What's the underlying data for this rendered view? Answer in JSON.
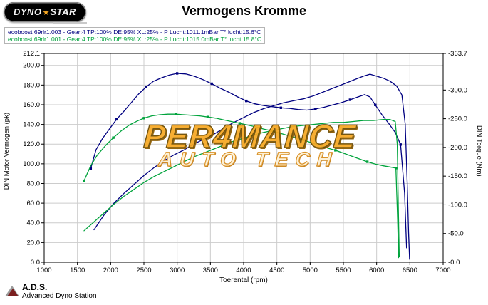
{
  "header": {
    "title": "Vermogens Kromme",
    "logo": {
      "part1": "DYNO",
      "star": "★",
      "part2": "STAR"
    }
  },
  "legend": {
    "run1": "ecoboost 69rlr1.003 - Gear:4 TP:100% DE:95% XL:25%  - P Lucht:1011.1mBar T° lucht:15.6°C",
    "run2": "ecoboost 69rlr1.001 - Gear:4 TP:100% DE:95% XL:25%  - P Lucht:1015.0mBar T° lucht:15.8°C"
  },
  "watermark": {
    "line1": "PER4MANCE",
    "line2": "AUTO TECH"
  },
  "footer": {
    "brand": "A.D.S.",
    "subtitle": "Advanced Dyno Station"
  },
  "colors": {
    "run1": "#000080",
    "run2": "#00a33c",
    "watermark_orange": "#f7a823",
    "logo_bg": "#000000",
    "grid": "#cccccc"
  },
  "chart_data": {
    "type": "line",
    "title": "Vermogens Kromme",
    "xlabel": "Toerental (rpm)",
    "ylabel_left": "DIN Motor Vermogen (pk)",
    "ylabel_right": "DIN Torque (Nm)",
    "x_range": [
      1000,
      7000
    ],
    "y_left_range": [
      0,
      212.1
    ],
    "y_right_range": [
      0,
      363.7
    ],
    "grid": true,
    "legend_position": "top-left",
    "x_ticks": [
      {
        "label": "1000",
        "value": 1000
      },
      {
        "label": "1500",
        "value": 1500
      },
      {
        "label": "2000",
        "value": 2000
      },
      {
        "label": "2500",
        "value": 2500
      },
      {
        "label": "3000",
        "value": 3000
      },
      {
        "label": "3500",
        "value": 3500
      },
      {
        "label": "4000",
        "value": 4000
      },
      {
        "label": "4500",
        "value": 4500
      },
      {
        "label": "5000",
        "value": 5000
      },
      {
        "label": "5500",
        "value": 5500
      },
      {
        "label": "6000",
        "value": 6000
      },
      {
        "label": "6500",
        "value": 6500
      },
      {
        "label": "7000",
        "value": 7000
      }
    ],
    "y_left_ticks": [
      {
        "label": "212.1",
        "value": 212.1
      },
      {
        "label": "200.0",
        "value": 200
      },
      {
        "label": "180.0",
        "value": 180
      },
      {
        "label": "160.0",
        "value": 160
      },
      {
        "label": "140.0",
        "value": 140
      },
      {
        "label": "120.0",
        "value": 120
      },
      {
        "label": "100.0",
        "value": 100
      },
      {
        "label": "80.0",
        "value": 80
      },
      {
        "label": "60.0",
        "value": 60
      },
      {
        "label": "40.0",
        "value": 40
      },
      {
        "label": "20.0",
        "value": 20
      },
      {
        "label": "0.0",
        "value": 0
      }
    ],
    "y_right_ticks": [
      {
        "label": "-363.7",
        "value": 363.7
      },
      {
        "label": "-300.0",
        "value": 300
      },
      {
        "label": "-250.0",
        "value": 250
      },
      {
        "label": "-200.0",
        "value": 200
      },
      {
        "label": "-150.0",
        "value": 150
      },
      {
        "label": "-100.0",
        "value": 100
      },
      {
        "label": "-50.0",
        "value": 50
      },
      {
        "label": "-0.0",
        "value": 0
      }
    ],
    "series": [
      {
        "id": "run1-power",
        "name": "ecoboost 69rlr1.003 vermogen (pk)",
        "axis": "left",
        "color": "#000080",
        "marker": false,
        "points": [
          [
            1750,
            33
          ],
          [
            1900,
            48
          ],
          [
            2050,
            60
          ],
          [
            2200,
            70
          ],
          [
            2350,
            79
          ],
          [
            2500,
            88
          ],
          [
            2650,
            96
          ],
          [
            2800,
            103
          ],
          [
            2950,
            109
          ],
          [
            3100,
            114
          ],
          [
            3250,
            120
          ],
          [
            3400,
            125
          ],
          [
            3550,
            130
          ],
          [
            3700,
            136
          ],
          [
            3850,
            142
          ],
          [
            4000,
            147
          ],
          [
            4150,
            152
          ],
          [
            4300,
            156
          ],
          [
            4450,
            159
          ],
          [
            4600,
            162
          ],
          [
            4750,
            164
          ],
          [
            4900,
            166
          ],
          [
            5050,
            169
          ],
          [
            5200,
            173
          ],
          [
            5350,
            177
          ],
          [
            5500,
            181
          ],
          [
            5650,
            185
          ],
          [
            5800,
            189
          ],
          [
            5900,
            191
          ],
          [
            6000,
            189
          ],
          [
            6100,
            187
          ],
          [
            6200,
            184
          ],
          [
            6300,
            179
          ],
          [
            6380,
            170
          ],
          [
            6430,
            140
          ],
          [
            6460,
            80
          ],
          [
            6480,
            30
          ],
          [
            6495,
            3
          ]
        ]
      },
      {
        "id": "run1-torque",
        "name": "ecoboost 69rlr1.003 torque (Nm)",
        "axis": "right",
        "color": "#000080",
        "marker": true,
        "points": [
          [
            1700,
            163
          ],
          [
            1780,
            196
          ],
          [
            1880,
            216
          ],
          [
            1980,
            232
          ],
          [
            2090,
            249
          ],
          [
            2200,
            263
          ],
          [
            2310,
            278
          ],
          [
            2420,
            293
          ],
          [
            2530,
            305
          ],
          [
            2640,
            315
          ],
          [
            2760,
            321
          ],
          [
            2880,
            326
          ],
          [
            3000,
            329
          ],
          [
            3130,
            328
          ],
          [
            3260,
            324
          ],
          [
            3390,
            318
          ],
          [
            3520,
            311
          ],
          [
            3650,
            303
          ],
          [
            3780,
            296
          ],
          [
            3910,
            288
          ],
          [
            4040,
            281
          ],
          [
            4170,
            276
          ],
          [
            4300,
            273
          ],
          [
            4430,
            271
          ],
          [
            4560,
            269
          ],
          [
            4690,
            268
          ],
          [
            4820,
            266
          ],
          [
            4950,
            265
          ],
          [
            5080,
            267
          ],
          [
            5210,
            270
          ],
          [
            5340,
            274
          ],
          [
            5470,
            278
          ],
          [
            5600,
            283
          ],
          [
            5720,
            288
          ],
          [
            5820,
            292
          ],
          [
            5900,
            288
          ],
          [
            5980,
            274
          ],
          [
            6080,
            257
          ],
          [
            6180,
            242
          ],
          [
            6280,
            226
          ],
          [
            6360,
            205
          ],
          [
            6420,
            120
          ],
          [
            6450,
            25
          ]
        ]
      },
      {
        "id": "run2-power",
        "name": "ecoboost 69rlr1.001 vermogen (pk)",
        "axis": "left",
        "color": "#00a33c",
        "marker": false,
        "points": [
          [
            1600,
            32
          ],
          [
            1750,
            41
          ],
          [
            1900,
            50
          ],
          [
            2050,
            59
          ],
          [
            2200,
            67
          ],
          [
            2350,
            74
          ],
          [
            2500,
            81
          ],
          [
            2650,
            87
          ],
          [
            2800,
            92
          ],
          [
            2950,
            97
          ],
          [
            3100,
            102
          ],
          [
            3250,
            107
          ],
          [
            3400,
            111
          ],
          [
            3550,
            115
          ],
          [
            3700,
            119
          ],
          [
            3850,
            123
          ],
          [
            4000,
            126
          ],
          [
            4150,
            129
          ],
          [
            4300,
            132
          ],
          [
            4450,
            134
          ],
          [
            4600,
            136
          ],
          [
            4750,
            138
          ],
          [
            4900,
            139
          ],
          [
            5050,
            140
          ],
          [
            5200,
            141
          ],
          [
            5350,
            142
          ],
          [
            5500,
            142
          ],
          [
            5650,
            143
          ],
          [
            5800,
            144
          ],
          [
            5950,
            144
          ],
          [
            6100,
            145
          ],
          [
            6200,
            145
          ],
          [
            6280,
            143
          ],
          [
            6310,
            120
          ],
          [
            6325,
            60
          ],
          [
            6340,
            6
          ]
        ]
      },
      {
        "id": "run2-torque",
        "name": "ecoboost 69rlr1.001 torque (Nm)",
        "axis": "right",
        "color": "#00a33c",
        "marker": true,
        "points": [
          [
            1600,
            142
          ],
          [
            1700,
            168
          ],
          [
            1800,
            187
          ],
          [
            1920,
            203
          ],
          [
            2040,
            217
          ],
          [
            2160,
            229
          ],
          [
            2280,
            239
          ],
          [
            2400,
            246
          ],
          [
            2500,
            251
          ],
          [
            2620,
            255
          ],
          [
            2740,
            257
          ],
          [
            2860,
            258
          ],
          [
            2980,
            258
          ],
          [
            3100,
            257
          ],
          [
            3220,
            256
          ],
          [
            3340,
            255
          ],
          [
            3460,
            253
          ],
          [
            3580,
            251
          ],
          [
            3700,
            248
          ],
          [
            3820,
            245
          ],
          [
            3940,
            242
          ],
          [
            4060,
            239
          ],
          [
            4180,
            236
          ],
          [
            4300,
            232
          ],
          [
            4420,
            229
          ],
          [
            4540,
            225
          ],
          [
            4660,
            221
          ],
          [
            4780,
            217
          ],
          [
            4900,
            213
          ],
          [
            5020,
            208
          ],
          [
            5140,
            204
          ],
          [
            5260,
            199
          ],
          [
            5380,
            195
          ],
          [
            5500,
            190
          ],
          [
            5620,
            185
          ],
          [
            5740,
            180
          ],
          [
            5860,
            175
          ],
          [
            5980,
            171
          ],
          [
            6100,
            168
          ],
          [
            6200,
            166
          ],
          [
            6290,
            164
          ],
          [
            6315,
            75
          ],
          [
            6330,
            8
          ]
        ]
      }
    ]
  }
}
